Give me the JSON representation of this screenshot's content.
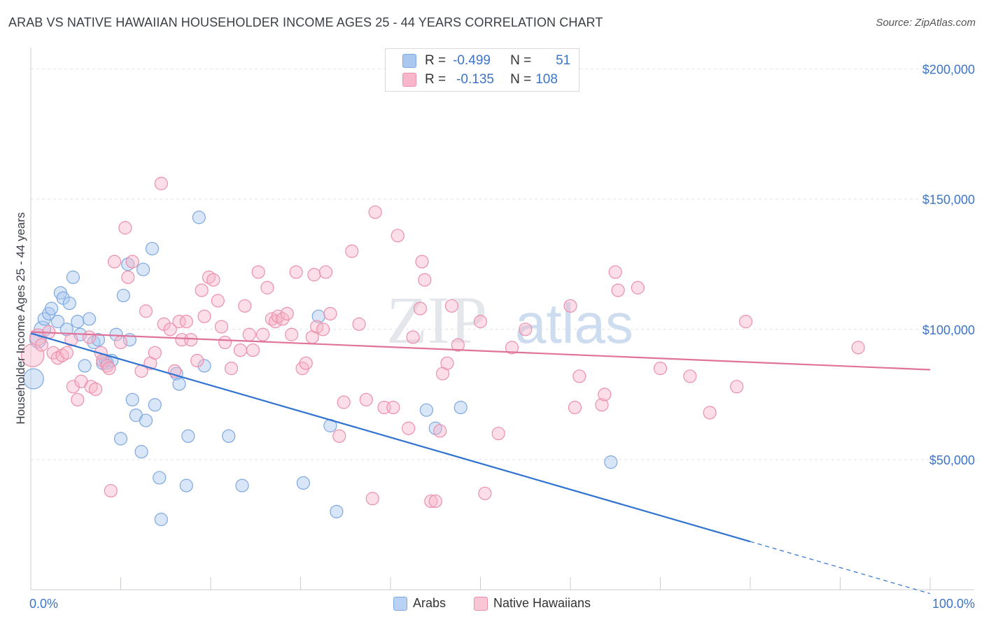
{
  "title": "ARAB VS NATIVE HAWAIIAN HOUSEHOLDER INCOME AGES 25 - 44 YEARS CORRELATION CHART",
  "source": "Source: ZipAtlas.com",
  "watermark": {
    "zip": "ZIP",
    "atlas": "atlas"
  },
  "legend": {
    "rows": [
      {
        "r_label": "R =",
        "r_value": "-0.499",
        "n_label": "N =",
        "n_value": "51",
        "color": "#a9c7ef",
        "border": "#7ea8e0"
      },
      {
        "r_label": "R =",
        "r_value": "-0.135",
        "n_label": "N =",
        "n_value": "108",
        "color": "#f7b6ca",
        "border": "#ec8fac"
      }
    ]
  },
  "bottom_legend": [
    {
      "label": "Arabs",
      "color": "#b9d2f3",
      "border": "#7ea8e0"
    },
    {
      "label": "Native Hawaiians",
      "color": "#f9c6d5",
      "border": "#ec8fac"
    }
  ],
  "chart_data": {
    "type": "scatter",
    "ylabel": "Householder Income Ages 25 - 44 years",
    "xlim": [
      0,
      100
    ],
    "ylim": [
      0,
      205000
    ],
    "y_ticks": [
      50000,
      100000,
      150000,
      200000
    ],
    "y_tick_labels": [
      "$50,000",
      "$100,000",
      "$150,000",
      "$200,000"
    ],
    "x_tick_labels": [
      "0.0%",
      "100.0%"
    ],
    "grid": true,
    "series": [
      {
        "name": "Arabs",
        "color": "#a9c7ef",
        "stroke": "#7ea8e0",
        "trend": {
          "x0": 0,
          "y0": 98500,
          "x1": 80,
          "y1": 18500,
          "dash_to_x": 100,
          "dash_to_y": -1500,
          "color": "#2f72d0"
        },
        "points": [
          [
            0.3,
            81000,
            1.6
          ],
          [
            0.8,
            96000,
            1.3
          ],
          [
            1.3,
            100000,
            1.3
          ],
          [
            1.5,
            104000,
            1
          ],
          [
            2.0,
            106000,
            1
          ],
          [
            2.3,
            108000,
            1
          ],
          [
            3.0,
            103000,
            1
          ],
          [
            3.3,
            114000,
            1
          ],
          [
            3.6,
            112000,
            1
          ],
          [
            4.0,
            100000,
            1
          ],
          [
            4.3,
            110000,
            1
          ],
          [
            4.7,
            120000,
            1
          ],
          [
            5.2,
            103000,
            1
          ],
          [
            5.5,
            98000,
            1
          ],
          [
            6.0,
            86000,
            1
          ],
          [
            6.5,
            104000,
            1
          ],
          [
            7.0,
            95000,
            1
          ],
          [
            7.5,
            96000,
            1
          ],
          [
            8.0,
            87000,
            1
          ],
          [
            8.3,
            88000,
            1
          ],
          [
            8.5,
            87000,
            1
          ],
          [
            9.5,
            98000,
            1
          ],
          [
            9.0,
            88000,
            1
          ],
          [
            10.0,
            58000,
            1
          ],
          [
            10.3,
            113000,
            1
          ],
          [
            10.8,
            125000,
            1
          ],
          [
            11.0,
            96000,
            1
          ],
          [
            11.3,
            73000,
            1
          ],
          [
            11.7,
            67000,
            1
          ],
          [
            12.3,
            53000,
            1
          ],
          [
            12.5,
            123000,
            1
          ],
          [
            12.8,
            65000,
            1
          ],
          [
            13.5,
            131000,
            1
          ],
          [
            13.8,
            71000,
            1
          ],
          [
            14.3,
            43000,
            1
          ],
          [
            14.5,
            27000,
            1
          ],
          [
            16.2,
            83000,
            1
          ],
          [
            16.5,
            79000,
            1
          ],
          [
            17.3,
            40000,
            1
          ],
          [
            17.5,
            59000,
            1
          ],
          [
            18.7,
            143000,
            1
          ],
          [
            19.3,
            86000,
            1
          ],
          [
            22.0,
            59000,
            1
          ],
          [
            23.5,
            40000,
            1
          ],
          [
            30.3,
            41000,
            1
          ],
          [
            32.0,
            105000,
            1
          ],
          [
            33.3,
            63000,
            1
          ],
          [
            34.0,
            30000,
            1
          ],
          [
            44.0,
            69000,
            1
          ],
          [
            45.0,
            62000,
            1
          ],
          [
            47.8,
            70000,
            1
          ],
          [
            64.5,
            49000,
            1
          ]
        ]
      },
      {
        "name": "Native Hawaiians",
        "color": "#f7b6ca",
        "stroke": "#ec8fac",
        "trend": {
          "x0": 0,
          "y0": 99000,
          "x1": 100,
          "y1": 84500,
          "color": "#e0739a"
        },
        "points": [
          [
            0.2,
            90000,
            1.8
          ],
          [
            0.8,
            97000,
            1.3
          ],
          [
            1.2,
            94000,
            1
          ],
          [
            2.0,
            99000,
            1
          ],
          [
            2.5,
            91000,
            1
          ],
          [
            3.0,
            89000,
            1
          ],
          [
            3.5,
            90000,
            1
          ],
          [
            4.0,
            91000,
            1
          ],
          [
            4.5,
            96000,
            1
          ],
          [
            4.7,
            78000,
            1
          ],
          [
            5.2,
            73000,
            1
          ],
          [
            5.6,
            80000,
            1
          ],
          [
            6.5,
            97000,
            1
          ],
          [
            6.7,
            78000,
            1
          ],
          [
            7.2,
            77000,
            1
          ],
          [
            7.8,
            91000,
            1
          ],
          [
            8.0,
            88000,
            1
          ],
          [
            8.5,
            86000,
            1
          ],
          [
            8.7,
            85000,
            1
          ],
          [
            8.9,
            38000,
            1
          ],
          [
            9.3,
            126000,
            1
          ],
          [
            10.0,
            95000,
            1
          ],
          [
            10.5,
            139000,
            1
          ],
          [
            10.8,
            120000,
            1
          ],
          [
            11.3,
            126000,
            1
          ],
          [
            12.3,
            84000,
            1
          ],
          [
            12.8,
            107000,
            1
          ],
          [
            13.3,
            87000,
            1
          ],
          [
            13.8,
            91000,
            1
          ],
          [
            14.5,
            156000,
            1
          ],
          [
            14.8,
            102000,
            1
          ],
          [
            15.5,
            100000,
            1
          ],
          [
            16.0,
            84000,
            1
          ],
          [
            16.5,
            103000,
            1
          ],
          [
            16.8,
            96000,
            1
          ],
          [
            17.3,
            103000,
            1
          ],
          [
            17.8,
            96000,
            1
          ],
          [
            18.5,
            88000,
            1
          ],
          [
            19.0,
            115000,
            1
          ],
          [
            19.3,
            105000,
            1
          ],
          [
            19.8,
            120000,
            1
          ],
          [
            20.3,
            119000,
            1
          ],
          [
            20.8,
            111000,
            1
          ],
          [
            21.2,
            101000,
            1
          ],
          [
            21.6,
            95000,
            1
          ],
          [
            22.3,
            85000,
            1
          ],
          [
            23.3,
            92000,
            1
          ],
          [
            23.8,
            109000,
            1
          ],
          [
            24.3,
            98000,
            1
          ],
          [
            24.7,
            92000,
            1
          ],
          [
            25.3,
            122000,
            1
          ],
          [
            25.8,
            98000,
            1
          ],
          [
            26.3,
            116000,
            1
          ],
          [
            26.8,
            104000,
            1
          ],
          [
            27.2,
            103000,
            1
          ],
          [
            27.5,
            105000,
            1
          ],
          [
            28.0,
            104000,
            1
          ],
          [
            28.5,
            106000,
            1
          ],
          [
            29.0,
            98000,
            1
          ],
          [
            29.5,
            122000,
            1
          ],
          [
            30.2,
            85000,
            1
          ],
          [
            30.6,
            87000,
            1
          ],
          [
            31.3,
            97000,
            1
          ],
          [
            31.5,
            121000,
            1
          ],
          [
            31.8,
            101000,
            1
          ],
          [
            32.5,
            100000,
            1
          ],
          [
            32.8,
            122000,
            1
          ],
          [
            33.3,
            106000,
            1
          ],
          [
            34.3,
            59000,
            1
          ],
          [
            34.8,
            72000,
            1
          ],
          [
            35.7,
            130000,
            1
          ],
          [
            36.5,
            102000,
            1
          ],
          [
            37.3,
            73000,
            1
          ],
          [
            38.0,
            35000,
            1
          ],
          [
            38.3,
            145000,
            1
          ],
          [
            39.3,
            70000,
            1
          ],
          [
            40.3,
            70000,
            1
          ],
          [
            40.8,
            136000,
            1
          ],
          [
            42.0,
            62000,
            1
          ],
          [
            42.5,
            97000,
            1
          ],
          [
            43.3,
            108000,
            1
          ],
          [
            43.5,
            126000,
            1
          ],
          [
            43.8,
            119000,
            1
          ],
          [
            44.5,
            34000,
            1
          ],
          [
            45.0,
            34000,
            1
          ],
          [
            45.5,
            61000,
            1
          ],
          [
            45.8,
            83000,
            1
          ],
          [
            46.3,
            87000,
            1
          ],
          [
            46.8,
            109000,
            1
          ],
          [
            47.5,
            94000,
            1
          ],
          [
            50.0,
            103000,
            1
          ],
          [
            50.5,
            37000,
            1
          ],
          [
            52.0,
            60000,
            1
          ],
          [
            53.5,
            93000,
            1
          ],
          [
            55.0,
            100000,
            1
          ],
          [
            60.0,
            109000,
            1
          ],
          [
            60.5,
            70000,
            1
          ],
          [
            61.0,
            82000,
            1
          ],
          [
            63.5,
            71000,
            1
          ],
          [
            63.8,
            75000,
            1
          ],
          [
            65.0,
            122000,
            1
          ],
          [
            65.3,
            115000,
            1
          ],
          [
            67.5,
            116000,
            1
          ],
          [
            70.0,
            85000,
            1
          ],
          [
            73.3,
            82000,
            1
          ],
          [
            75.5,
            68000,
            1
          ],
          [
            78.5,
            78000,
            1
          ],
          [
            79.5,
            103000,
            1
          ],
          [
            92.0,
            93000,
            1
          ]
        ]
      }
    ]
  }
}
